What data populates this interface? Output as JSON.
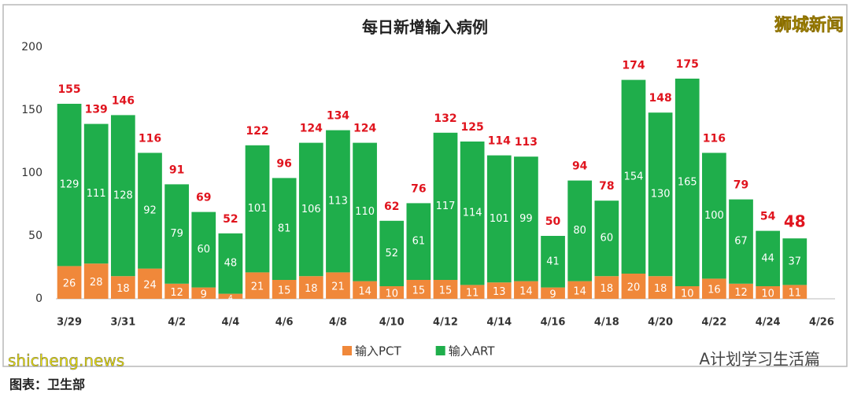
{
  "chart_data": {
    "type": "stacked_bar",
    "title": "每日新增输入病例",
    "categories": [
      "3/29",
      null,
      "3/31",
      null,
      "4/2",
      null,
      "4/4",
      null,
      "4/6",
      null,
      "4/8",
      null,
      "4/10",
      null,
      "4/12",
      null,
      "4/14",
      null,
      "4/16",
      null,
      "4/18",
      null,
      "4/20",
      null,
      "4/22",
      null,
      "4/24",
      null,
      "4/26"
    ],
    "series": [
      {
        "name": "输入PCT",
        "color": "#f0883a",
        "values": [
          26,
          28,
          18,
          24,
          12,
          9,
          4,
          21,
          15,
          18,
          21,
          14,
          10,
          15,
          15,
          11,
          13,
          14,
          9,
          14,
          18,
          20,
          18,
          10,
          16,
          12,
          10,
          11,
          null
        ]
      },
      {
        "name": "输入ART",
        "color": "#1fae4b",
        "values": [
          129,
          111,
          128,
          92,
          79,
          60,
          48,
          101,
          81,
          106,
          113,
          110,
          52,
          61,
          117,
          114,
          101,
          99,
          41,
          80,
          60,
          154,
          130,
          165,
          100,
          67,
          44,
          37,
          null
        ]
      }
    ],
    "totals": [
      155,
      139,
      146,
      116,
      91,
      69,
      52,
      122,
      96,
      124,
      134,
      124,
      62,
      76,
      132,
      125,
      114,
      113,
      50,
      94,
      78,
      174,
      148,
      175,
      116,
      79,
      54,
      48,
      null
    ],
    "ylim": [
      0,
      200
    ],
    "yticks": [
      0,
      50,
      100,
      150,
      200
    ],
    "grid": false,
    "legend": "bottom"
  },
  "watermark": "狮城新闻",
  "account": "A计划学习生活篇",
  "site": "shicheng.news",
  "source": "图表：卫生部"
}
